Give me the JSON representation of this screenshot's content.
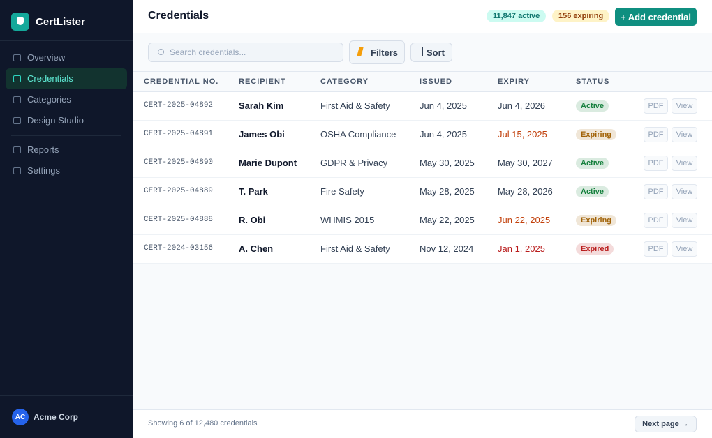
{
  "sidebar": {
    "brand": "CertLister",
    "nav": [
      {
        "label": "Overview",
        "selected": false
      },
      {
        "label": "Credentials",
        "selected": true
      },
      {
        "label": "Categories",
        "selected": false
      },
      {
        "label": "Design Studio",
        "selected": false
      }
    ],
    "nav_secondary": [
      {
        "label": "Reports",
        "selected": false
      },
      {
        "label": "Settings",
        "selected": false
      }
    ],
    "user": {
      "initials": "AC",
      "name": "Acme Corp"
    }
  },
  "header": {
    "title": "Credentials",
    "active_badge": "11,847 active",
    "expiring_badge": "156 expiring",
    "add_button": "+ Add credential"
  },
  "toolbar": {
    "search_placeholder": "Search credentials...",
    "filters": "Filters",
    "sort": "Sort"
  },
  "table": {
    "columns": [
      "CREDENTIAL NO.",
      "RECIPIENT",
      "CATEGORY",
      "ISSUED",
      "EXPIRY",
      "STATUS"
    ],
    "actions": [
      "PDF",
      "View"
    ],
    "rows": [
      {
        "cells": [
          "CERT-2025-04892",
          "Sarah Kim",
          "First Aid & Safety",
          "Jun 4, 2025",
          "Jun 4, 2026",
          "Active"
        ],
        "status_color": "#15803d",
        "expiry_color": "#334155"
      },
      {
        "cells": [
          "CERT-2025-04891",
          "James Obi",
          "OSHA Compliance",
          "Jun 4, 2025",
          "Jul 15, 2025",
          "Expiring"
        ],
        "status_color": "#a16207",
        "expiry_color": "#c2410c"
      },
      {
        "cells": [
          "CERT-2025-04890",
          "Marie Dupont",
          "GDPR & Privacy",
          "May 30, 2025",
          "May 30, 2027",
          "Active"
        ],
        "status_color": "#15803d",
        "expiry_color": "#334155"
      },
      {
        "cells": [
          "CERT-2025-04889",
          "T. Park",
          "Fire Safety",
          "May 28, 2025",
          "May 28, 2026",
          "Active"
        ],
        "status_color": "#15803d",
        "expiry_color": "#334155"
      },
      {
        "cells": [
          "CERT-2025-04888",
          "R. Obi",
          "WHMIS 2015",
          "May 22, 2025",
          "Jun 22, 2025",
          "Expiring"
        ],
        "status_color": "#a16207",
        "expiry_color": "#c2410c"
      },
      {
        "cells": [
          "CERT-2024-03156",
          "A. Chen",
          "First Aid & Safety",
          "Nov 12, 2024",
          "Jan 1, 2025",
          "Expired"
        ],
        "status_color": "#b91c1c",
        "expiry_color": "#b91c1c"
      }
    ]
  },
  "footer": {
    "summary": "Showing 6 of 12,480 credentials",
    "next": "Next page →"
  }
}
